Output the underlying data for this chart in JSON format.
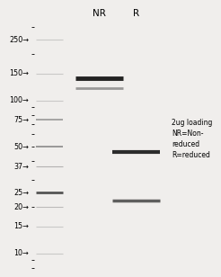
{
  "figure_width": 2.52,
  "figure_height": 3.0,
  "dpi": 100,
  "bg_color": "#f0eeec",
  "title_NR": "NR",
  "title_R": "R",
  "mw_markers": [
    250,
    150,
    100,
    75,
    50,
    37,
    25,
    20,
    15,
    10
  ],
  "ymin": 8,
  "ymax": 310,
  "ladder_bands": [
    {
      "mw": 250,
      "alpha": 0.22,
      "thick": 0.8
    },
    {
      "mw": 150,
      "alpha": 0.22,
      "thick": 0.8
    },
    {
      "mw": 100,
      "alpha": 0.22,
      "thick": 0.8
    },
    {
      "mw": 75,
      "alpha": 0.5,
      "thick": 1.2
    },
    {
      "mw": 50,
      "alpha": 0.5,
      "thick": 1.4
    },
    {
      "mw": 37,
      "alpha": 0.35,
      "thick": 0.8
    },
    {
      "mw": 25,
      "alpha": 0.9,
      "thick": 2.0
    },
    {
      "mw": 20,
      "alpha": 0.3,
      "thick": 0.8
    },
    {
      "mw": 15,
      "alpha": 0.22,
      "thick": 0.8
    },
    {
      "mw": 10,
      "alpha": 0.22,
      "thick": 0.8
    }
  ],
  "NR_bands": [
    {
      "mw": 140,
      "alpha": 0.92,
      "thick": 3.5,
      "color": "#111111"
    },
    {
      "mw": 120,
      "alpha": 0.45,
      "thick": 2.0,
      "color": "#333333"
    }
  ],
  "R_bands": [
    {
      "mw": 46,
      "alpha": 0.88,
      "thick": 3.0,
      "color": "#111111"
    },
    {
      "mw": 22,
      "alpha": 0.7,
      "thick": 2.5,
      "color": "#222222"
    }
  ],
  "annotation_text": "2ug loading\nNR=Non-\nreduced\nR=reduced",
  "label_fontsize": 5.5,
  "marker_fontsize": 5.8,
  "header_fontsize": 7.5
}
